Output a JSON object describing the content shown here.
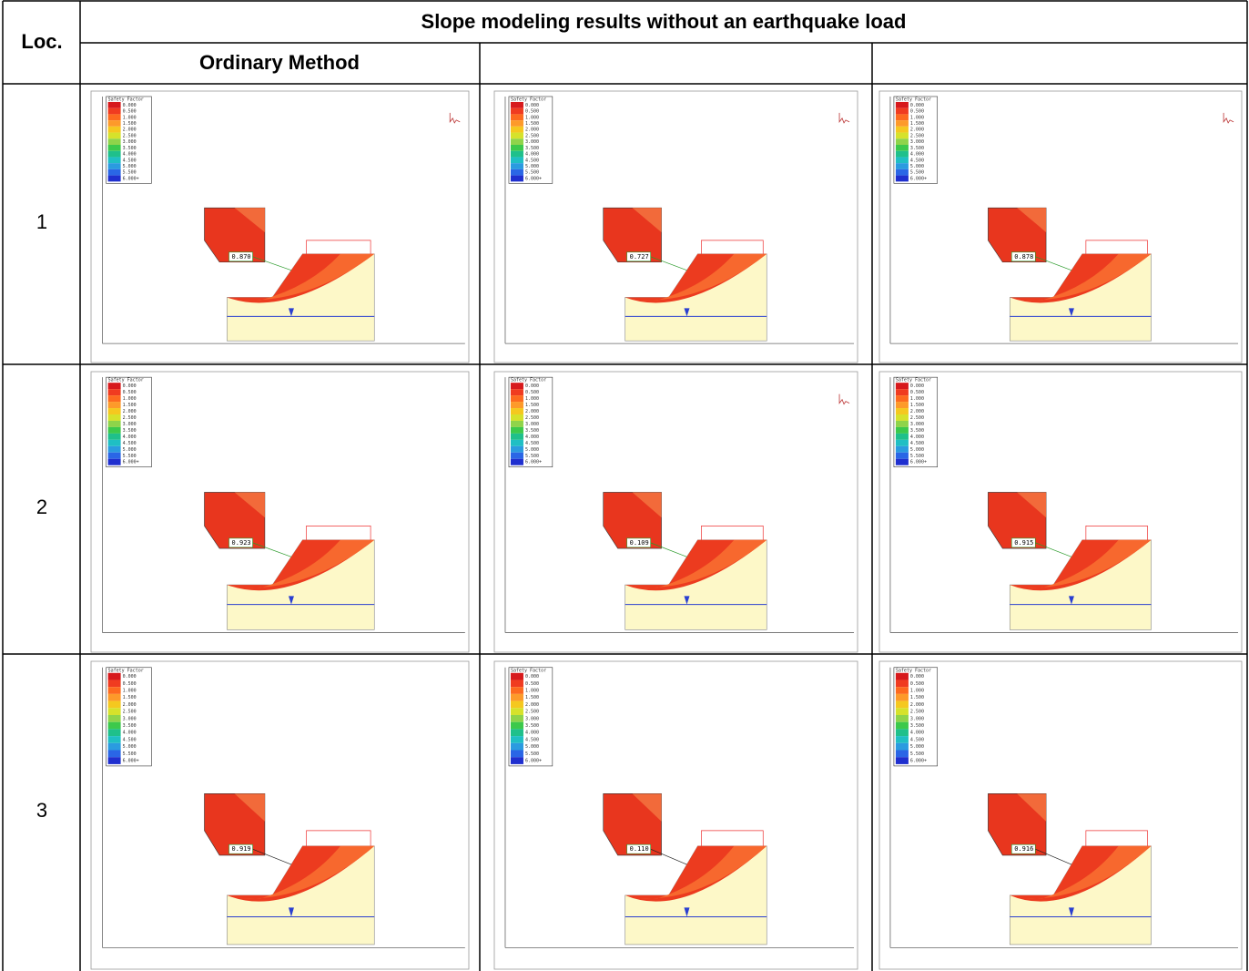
{
  "table": {
    "header": {
      "loc": "Loc.",
      "title": "Slope modeling results without an earthquake load",
      "method": "Ordinary Method"
    },
    "legend": {
      "title": "Safety Factor",
      "values": [
        "0.000",
        "0.500",
        "1.000",
        "1.500",
        "2.000",
        "2.500",
        "3.000",
        "3.500",
        "4.000",
        "4.500",
        "5.000",
        "5.500",
        "6.000+"
      ]
    },
    "rows": [
      {
        "loc": "1",
        "figures": [
          {
            "fs": "0.870"
          },
          {
            "fs": "0.727"
          },
          {
            "fs": "0.878"
          }
        ]
      },
      {
        "loc": "2",
        "figures": [
          {
            "fs": "0.923"
          },
          {
            "fs": "0.109"
          },
          {
            "fs": "0.915"
          }
        ]
      },
      {
        "loc": "3",
        "figures": [
          {
            "fs": "0.919"
          },
          {
            "fs": "0.110"
          },
          {
            "fs": "0.916"
          }
        ]
      }
    ]
  }
}
